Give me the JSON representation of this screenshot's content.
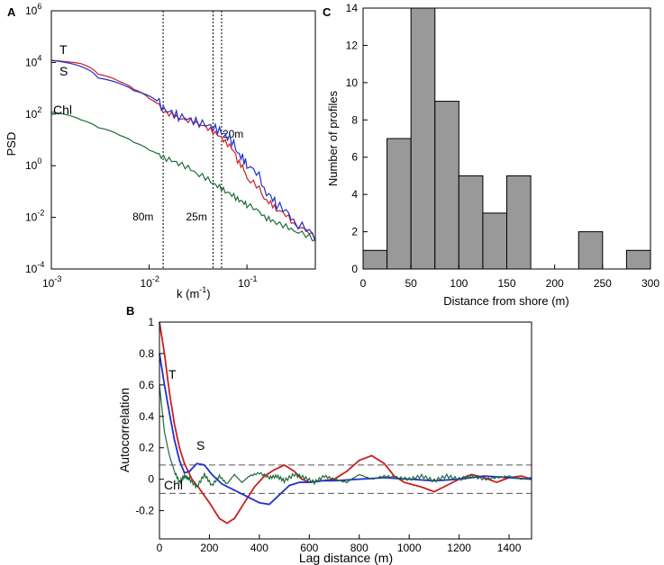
{
  "chart_data": [
    {
      "panel": "A",
      "type": "line",
      "xscale": "log",
      "yscale": "log",
      "xlabel": "k (m",
      "xlabel_sup": "-1",
      "xlabel_close": ")",
      "ylabel": "PSD",
      "xlim": [
        0.001,
        0.5
      ],
      "ylim": [
        0.0001,
        1000000
      ],
      "xticks": [
        {
          "value": 0.001,
          "base": "10",
          "exp": "-3"
        },
        {
          "value": 0.01,
          "base": "10",
          "exp": "-2"
        },
        {
          "value": 0.1,
          "base": "10",
          "exp": "-1"
        }
      ],
      "yticks": [
        {
          "value": 0.0001,
          "base": "10",
          "exp": "-4"
        },
        {
          "value": 0.01,
          "base": "10",
          "exp": "-2"
        },
        {
          "value": 1,
          "base": "10",
          "exp": "0"
        },
        {
          "value": 100,
          "base": "10",
          "exp": "2"
        },
        {
          "value": 10000,
          "base": "10",
          "exp": "4"
        },
        {
          "value": 1000000,
          "base": "10",
          "exp": "6"
        }
      ],
      "vlines": [
        {
          "k": 0.0139,
          "label": "80m"
        },
        {
          "k": 0.045,
          "label": "25m"
        },
        {
          "k": 0.055,
          "label": "20m"
        }
      ],
      "series": [
        {
          "name": "T",
          "color": "#cc1f1f",
          "points": [
            [
              0.001,
              12000
            ],
            [
              0.002,
              9000
            ],
            [
              0.003,
              3500
            ],
            [
              0.005,
              1800
            ],
            [
              0.007,
              900
            ],
            [
              0.01,
              400
            ],
            [
              0.014,
              120
            ],
            [
              0.02,
              70
            ],
            [
              0.03,
              45
            ],
            [
              0.045,
              20
            ],
            [
              0.06,
              8
            ],
            [
              0.08,
              1.5
            ],
            [
              0.1,
              0.3
            ],
            [
              0.15,
              0.05
            ],
            [
              0.2,
              0.02
            ],
            [
              0.3,
              0.005
            ],
            [
              0.5,
              0.0015
            ]
          ]
        },
        {
          "name": "S",
          "color": "#1f2fcc",
          "points": [
            [
              0.001,
              12000
            ],
            [
              0.002,
              7000
            ],
            [
              0.003,
              2500
            ],
            [
              0.005,
              1500
            ],
            [
              0.007,
              800
            ],
            [
              0.01,
              500
            ],
            [
              0.014,
              150
            ],
            [
              0.02,
              80
            ],
            [
              0.03,
              50
            ],
            [
              0.045,
              30
            ],
            [
              0.06,
              15
            ],
            [
              0.08,
              3
            ],
            [
              0.1,
              1
            ],
            [
              0.15,
              0.1
            ],
            [
              0.2,
              0.03
            ],
            [
              0.3,
              0.006
            ],
            [
              0.5,
              0.0015
            ]
          ]
        },
        {
          "name": "Chl",
          "color": "#1f6b3a",
          "points": [
            [
              0.001,
              120
            ],
            [
              0.002,
              60
            ],
            [
              0.003,
              30
            ],
            [
              0.005,
              15
            ],
            [
              0.007,
              8
            ],
            [
              0.01,
              4
            ],
            [
              0.014,
              2
            ],
            [
              0.02,
              1.2
            ],
            [
              0.03,
              0.5
            ],
            [
              0.045,
              0.2
            ],
            [
              0.06,
              0.1
            ],
            [
              0.08,
              0.05
            ],
            [
              0.1,
              0.03
            ],
            [
              0.15,
              0.01
            ],
            [
              0.2,
              0.006
            ],
            [
              0.3,
              0.003
            ],
            [
              0.5,
              0.0012
            ]
          ]
        }
      ]
    },
    {
      "panel": "C",
      "type": "bar",
      "xlabel": "Distance from shore (m)",
      "ylabel": "Number of profiles",
      "xlim": [
        0,
        300
      ],
      "ylim": [
        0,
        14
      ],
      "bin_width": 25,
      "bin_starts": [
        0,
        25,
        50,
        75,
        100,
        125,
        150,
        175,
        200,
        225,
        250,
        275
      ],
      "values": [
        1,
        7,
        14,
        9,
        5,
        3,
        5,
        0,
        0,
        2,
        0,
        1
      ],
      "xticks": [
        "0",
        "50",
        "100",
        "150",
        "200",
        "250",
        "300"
      ],
      "yticks": [
        "0",
        "2",
        "4",
        "6",
        "8",
        "10",
        "12",
        "14"
      ],
      "bar_color": "#999999"
    },
    {
      "panel": "B",
      "type": "line",
      "xlabel": "Lag distance (m)",
      "ylabel": "Autocorrelation",
      "xlim": [
        0,
        1490
      ],
      "ylim": [
        -0.38,
        1.0
      ],
      "xticks": [
        "0",
        "200",
        "400",
        "600",
        "800",
        "1000",
        "1200",
        "1400"
      ],
      "yticks": [
        "-0.2",
        "0",
        "0.2",
        "0.4",
        "0.6",
        "0.8",
        "1"
      ],
      "hlines": [
        0.09,
        -0.09
      ],
      "series": [
        {
          "name": "T",
          "color": "#cc1f1f",
          "points": [
            [
              0,
              1
            ],
            [
              20,
              0.8
            ],
            [
              40,
              0.55
            ],
            [
              60,
              0.35
            ],
            [
              80,
              0.2
            ],
            [
              100,
              0.1
            ],
            [
              130,
              0
            ],
            [
              160,
              -0.06
            ],
            [
              200,
              -0.15
            ],
            [
              240,
              -0.25
            ],
            [
              270,
              -0.28
            ],
            [
              300,
              -0.25
            ],
            [
              340,
              -0.15
            ],
            [
              380,
              -0.05
            ],
            [
              420,
              0.02
            ],
            [
              460,
              0.06
            ],
            [
              500,
              0.09
            ],
            [
              540,
              0.05
            ],
            [
              570,
              0
            ],
            [
              600,
              -0.02
            ],
            [
              650,
              -0.01
            ],
            [
              700,
              0
            ],
            [
              750,
              0.05
            ],
            [
              800,
              0.12
            ],
            [
              850,
              0.15
            ],
            [
              900,
              0.1
            ],
            [
              940,
              0.02
            ],
            [
              980,
              -0.02
            ],
            [
              1050,
              -0.05
            ],
            [
              1100,
              -0.08
            ],
            [
              1150,
              -0.04
            ],
            [
              1200,
              0
            ],
            [
              1250,
              0.03
            ],
            [
              1300,
              0.01
            ],
            [
              1350,
              -0.02
            ],
            [
              1400,
              0.01
            ],
            [
              1450,
              0.02
            ],
            [
              1490,
              0
            ]
          ]
        },
        {
          "name": "S",
          "color": "#1f2fcc",
          "points": [
            [
              0,
              0.8
            ],
            [
              20,
              0.6
            ],
            [
              40,
              0.42
            ],
            [
              60,
              0.25
            ],
            [
              80,
              0.12
            ],
            [
              100,
              0.04
            ],
            [
              120,
              0.05
            ],
            [
              150,
              0.1
            ],
            [
              180,
              0.09
            ],
            [
              210,
              0.03
            ],
            [
              250,
              -0.03
            ],
            [
              300,
              -0.07
            ],
            [
              350,
              -0.11
            ],
            [
              400,
              -0.15
            ],
            [
              440,
              -0.16
            ],
            [
              480,
              -0.1
            ],
            [
              520,
              -0.04
            ],
            [
              560,
              -0.02
            ],
            [
              600,
              -0.02
            ],
            [
              650,
              -0.01
            ],
            [
              700,
              -0.01
            ],
            [
              800,
              0
            ],
            [
              900,
              0.01
            ],
            [
              1000,
              0
            ],
            [
              1100,
              -0.01
            ],
            [
              1200,
              0
            ],
            [
              1300,
              0.02
            ],
            [
              1400,
              0.01
            ],
            [
              1490,
              0
            ]
          ]
        },
        {
          "name": "Chl",
          "color": "#1f6b3a",
          "points": [
            [
              0,
              0.6
            ],
            [
              20,
              0.3
            ],
            [
              40,
              0.15
            ],
            [
              60,
              0.05
            ],
            [
              80,
              -0.02
            ],
            [
              100,
              0.02
            ],
            [
              120,
              0
            ],
            [
              150,
              -0.05
            ],
            [
              180,
              0.03
            ],
            [
              210,
              -0.04
            ],
            [
              240,
              0.02
            ],
            [
              270,
              -0.03
            ],
            [
              300,
              0.03
            ],
            [
              330,
              -0.02
            ],
            [
              360,
              0.02
            ],
            [
              400,
              0.04
            ],
            [
              440,
              0.01
            ],
            [
              470,
              0.02
            ],
            [
              500,
              -0.01
            ],
            [
              540,
              0.03
            ],
            [
              580,
              0.01
            ],
            [
              620,
              -0.02
            ],
            [
              660,
              0.02
            ],
            [
              700,
              0
            ],
            [
              750,
              -0.02
            ],
            [
              800,
              0.03
            ],
            [
              850,
              0
            ],
            [
              900,
              0.02
            ],
            [
              950,
              0.01
            ],
            [
              1000,
              0
            ],
            [
              1050,
              0.02
            ],
            [
              1100,
              -0.01
            ],
            [
              1150,
              0.02
            ],
            [
              1200,
              0
            ],
            [
              1250,
              0.02
            ],
            [
              1300,
              0
            ],
            [
              1350,
              0.01
            ],
            [
              1400,
              0.02
            ],
            [
              1450,
              0
            ],
            [
              1490,
              0.01
            ]
          ]
        }
      ]
    }
  ],
  "labels": {
    "panel_a": "A",
    "panel_b": "B",
    "panel_c": "C",
    "a_T": "T",
    "a_S": "S",
    "a_Chl": "Chl",
    "b_T": "T",
    "b_S": "S",
    "b_Chl": "Chl"
  }
}
